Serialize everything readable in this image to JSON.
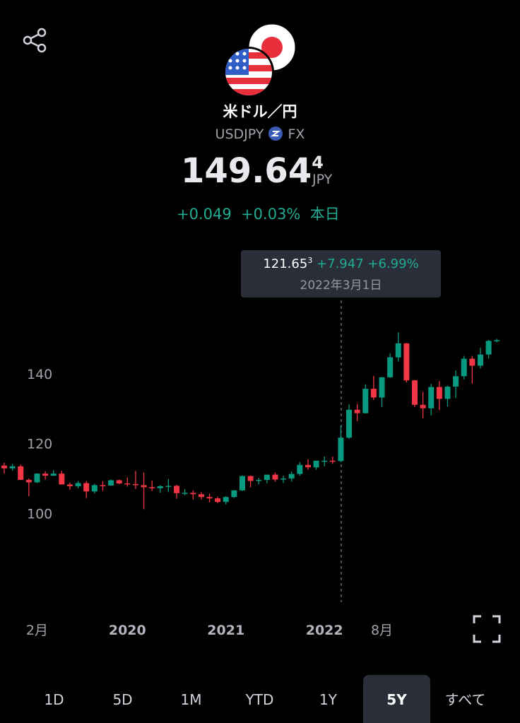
{
  "header": {
    "title": "米ドル／円",
    "symbol": "USDJPY",
    "exchange": "FX",
    "price": "149.64",
    "price_sup": "4",
    "currency": "JPY",
    "change": "+0.049",
    "change_pct": "+0.03%",
    "period": "本日"
  },
  "tooltip": {
    "price": "121.65",
    "price_sup": "3",
    "change": "+7.947",
    "change_pct": "+6.99%",
    "date": "2022年3月1日"
  },
  "chart_data": {
    "type": "candlestick",
    "up_color": "#089981",
    "down_color": "#f23645",
    "categories": [
      null,
      null,
      null,
      null,
      "2月",
      null,
      null,
      null,
      null,
      null,
      null,
      null,
      null,
      null,
      null,
      "2020",
      null,
      null,
      null,
      null,
      null,
      null,
      null,
      null,
      null,
      null,
      null,
      "2021",
      null,
      null,
      null,
      null,
      null,
      null,
      null,
      null,
      null,
      null,
      null,
      "2022",
      null,
      null,
      null,
      null,
      null,
      null,
      "8月",
      null,
      null,
      null,
      null,
      null,
      null,
      null,
      null,
      null,
      null,
      null,
      null,
      null,
      null
    ],
    "open": [
      113.7,
      112.9,
      113.5,
      109.6,
      108.9,
      111.4,
      110.8,
      111.4,
      108.3,
      107.8,
      108.7,
      106.3,
      108.1,
      108.0,
      109.5,
      108.6,
      108.4,
      108.1,
      107.5,
      107.2,
      107.8,
      107.9,
      105.8,
      105.9,
      105.5,
      104.7,
      104.3,
      103.3,
      104.7,
      106.6,
      110.7,
      109.3,
      109.6,
      111.1,
      109.7,
      110.0,
      111.3,
      113.9,
      113.2,
      115.1,
      115.1,
      115.0,
      121.7,
      129.7,
      128.7,
      135.7,
      133.2,
      139.0,
      144.7,
      148.7,
      138.1,
      131.1,
      130.1,
      136.2,
      132.8,
      136.3,
      139.3,
      144.3,
      142.3,
      145.5,
      149.4
    ],
    "high": [
      114.5,
      114.2,
      114.0,
      110.0,
      111.5,
      112.1,
      112.4,
      112.2,
      108.8,
      109.3,
      109.3,
      108.5,
      109.3,
      109.7,
      109.7,
      110.3,
      112.2,
      111.7,
      109.4,
      108.1,
      109.9,
      108.2,
      107.0,
      106.6,
      106.1,
      105.7,
      104.8,
      105.0,
      106.7,
      110.9,
      110.9,
      110.2,
      111.1,
      111.7,
      110.8,
      112.0,
      114.7,
      115.5,
      115.1,
      116.3,
      116.3,
      125.1,
      131.3,
      131.3,
      137.0,
      139.4,
      139.1,
      145.9,
      151.9,
      148.8,
      138.2,
      134.8,
      137.1,
      137.9,
      136.6,
      140.9,
      145.1,
      145.1,
      147.4,
      149.7,
      150.0
    ],
    "low": [
      111.4,
      112.3,
      110.0,
      104.9,
      108.7,
      109.7,
      110.8,
      108.3,
      106.8,
      107.2,
      104.4,
      105.7,
      106.5,
      107.9,
      108.4,
      107.7,
      107.0,
      101.2,
      106.4,
      105.9,
      106.1,
      104.2,
      105.2,
      104.0,
      104.0,
      103.2,
      102.9,
      102.6,
      104.4,
      106.4,
      107.5,
      108.3,
      108.6,
      109.1,
      108.7,
      109.1,
      110.8,
      112.5,
      112.5,
      113.5,
      114.2,
      114.7,
      121.3,
      126.4,
      128.6,
      132.5,
      130.4,
      138.8,
      143.5,
      137.5,
      130.5,
      127.2,
      128.1,
      129.6,
      130.6,
      133.0,
      138.4,
      137.2,
      141.5,
      144.4,
      149.0
    ],
    "close": [
      112.9,
      113.5,
      109.6,
      108.9,
      111.4,
      110.8,
      111.4,
      108.3,
      107.8,
      108.7,
      106.3,
      108.1,
      108.0,
      109.5,
      108.6,
      108.4,
      108.1,
      107.5,
      107.2,
      107.8,
      107.9,
      105.8,
      105.9,
      105.5,
      104.7,
      104.3,
      103.3,
      104.7,
      106.6,
      110.7,
      109.3,
      109.6,
      111.1,
      109.7,
      110.0,
      111.3,
      113.9,
      113.2,
      115.1,
      115.1,
      115.0,
      121.7,
      129.7,
      128.7,
      135.7,
      133.2,
      139.0,
      144.7,
      148.7,
      138.1,
      131.1,
      130.1,
      136.2,
      132.8,
      136.3,
      139.3,
      144.3,
      142.3,
      145.5,
      149.4,
      149.6
    ],
    "ylim": [
      75,
      160
    ],
    "yticks": [
      100,
      120,
      140
    ]
  },
  "range_buttons": {
    "labels": [
      "1D",
      "5D",
      "1M",
      "YTD",
      "1Y",
      "5Y",
      "すべて"
    ],
    "selected": "5Y"
  }
}
